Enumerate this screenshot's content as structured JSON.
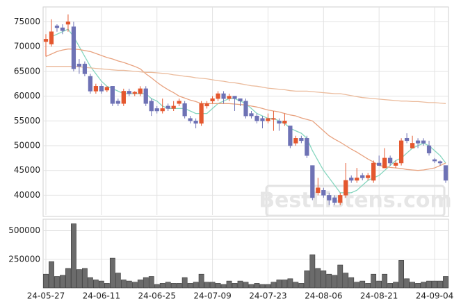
{
  "chart_data": [
    {
      "type": "candlestick",
      "open": [
        71000,
        70500,
        74200,
        73800,
        74500,
        74000,
        66500,
        66500,
        64000,
        61000,
        62000,
        61200,
        62000,
        59000,
        58500,
        61000,
        60500,
        60500,
        61500,
        59000,
        57500,
        57000,
        58000,
        57500,
        58500,
        58500,
        55500,
        55000,
        54500,
        58000,
        59000,
        59500,
        60500,
        59500,
        60000,
        59500,
        59000,
        56500,
        56000,
        55500,
        55000,
        55300,
        55000,
        54500,
        54000,
        50500,
        51500,
        51500,
        46000,
        40500,
        41000,
        40000,
        39500,
        38500,
        40000,
        43500,
        43000,
        44000,
        43500,
        43000,
        46500,
        45500,
        47500,
        46000,
        46500,
        51500,
        49500,
        51000,
        51000,
        50000,
        47200,
        46800,
        46000
      ],
      "high": [
        72500,
        75500,
        74500,
        74500,
        76500,
        75000,
        67500,
        67000,
        64500,
        62500,
        62500,
        62000,
        62000,
        59500,
        61500,
        61500,
        61000,
        62000,
        62000,
        59500,
        58000,
        59500,
        58500,
        59000,
        59500,
        59000,
        56000,
        55500,
        59000,
        59000,
        60000,
        61000,
        61000,
        60500,
        60000,
        59500,
        59500,
        57000,
        56500,
        56000,
        56500,
        57000,
        55500,
        56500,
        54000,
        52000,
        52000,
        52000,
        46000,
        43500,
        41500,
        40500,
        40000,
        40500,
        46500,
        44000,
        45500,
        44500,
        44500,
        47000,
        48000,
        49500,
        48000,
        47000,
        51500,
        52500,
        52000,
        51500,
        51500,
        51000,
        47500,
        47000,
        46000
      ],
      "low": [
        68000,
        70000,
        73000,
        72500,
        73000,
        65000,
        64500,
        64000,
        60500,
        60500,
        60500,
        60800,
        58000,
        58000,
        58000,
        60000,
        60000,
        60000,
        58000,
        56000,
        56500,
        56500,
        57000,
        57000,
        58000,
        55500,
        54500,
        53500,
        54000,
        57500,
        58500,
        59000,
        58500,
        59000,
        57000,
        58000,
        55500,
        55500,
        54500,
        53500,
        54500,
        53000,
        53000,
        54000,
        49500,
        50000,
        50500,
        47500,
        39000,
        40000,
        39500,
        38000,
        38000,
        38000,
        39500,
        42500,
        42500,
        43000,
        43000,
        42500,
        46000,
        45500,
        46000,
        45500,
        46000,
        50500,
        49500,
        49500,
        50000,
        48000,
        46500,
        46000,
        42500
      ],
      "close": [
        71500,
        73000,
        73800,
        73200,
        75000,
        65500,
        66000,
        64500,
        61000,
        62000,
        61000,
        61800,
        58500,
        58500,
        61000,
        60500,
        60800,
        61500,
        58500,
        57000,
        57000,
        57500,
        57500,
        58000,
        59000,
        56000,
        55000,
        54500,
        58500,
        58500,
        59500,
        60500,
        59500,
        60000,
        59500,
        59000,
        56000,
        56000,
        55000,
        55000,
        55500,
        55500,
        54500,
        55000,
        50000,
        51500,
        51000,
        48000,
        39500,
        41500,
        40000,
        39000,
        38500,
        40000,
        43000,
        43000,
        43500,
        43500,
        44000,
        46500,
        46000,
        47500,
        46500,
        46500,
        51000,
        51000,
        50500,
        50500,
        50500,
        48500,
        46900,
        46500,
        43000
      ],
      "up_color": "#e4572e",
      "down_color": "#6e72b5",
      "series": [
        {
          "color": "#86d6bf",
          "values": [
            null,
            72000,
            72500,
            73000,
            73500,
            72000,
            70000,
            68000,
            66000,
            64500,
            63000,
            62000,
            61500,
            61000,
            60500,
            60500,
            60500,
            60500,
            60500,
            59500,
            59000,
            58000,
            57500,
            57500,
            57500,
            57500,
            57000,
            56500,
            56500,
            56500,
            57500,
            58500,
            59000,
            59500,
            59500,
            59000,
            58500,
            57500,
            56500,
            56000,
            55500,
            55500,
            55000,
            54500,
            53500,
            53000,
            52500,
            51500,
            49000,
            47000,
            45000,
            43500,
            42000,
            40500,
            40500,
            40500,
            41000,
            42000,
            43000,
            43500,
            44000,
            45000,
            46000,
            47000,
            47500,
            48500,
            49500,
            50000,
            50500,
            50000,
            49000,
            48000,
            46500
          ]
        },
        {
          "color": "#e8a27f",
          "values": [
            68000,
            68500,
            69000,
            69300,
            69500,
            69500,
            69400,
            69200,
            69000,
            68600,
            68200,
            67800,
            67500,
            67100,
            66800,
            66400,
            66000,
            65500,
            64500,
            63700,
            62800,
            62000,
            61300,
            60700,
            60000,
            59600,
            59200,
            58900,
            58500,
            58500,
            58500,
            58500,
            58500,
            58500,
            58400,
            58300,
            58200,
            58000,
            57800,
            57500,
            57200,
            57000,
            56800,
            56500,
            56200,
            56000,
            55600,
            55300,
            55000,
            54000,
            53000,
            52000,
            51300,
            50700,
            50000,
            49300,
            48700,
            48000,
            47300,
            46700,
            46000,
            45800,
            45600,
            45500,
            45400,
            45200,
            45100,
            45000,
            45100,
            45300,
            45500,
            46000,
            46500
          ]
        },
        {
          "color": "#ebbb9c",
          "values": [
            66000,
            66000,
            66000,
            66000,
            66000,
            66000,
            65900,
            65800,
            65700,
            65600,
            65500,
            65400,
            65300,
            65200,
            65200,
            65100,
            65000,
            64900,
            64800,
            64800,
            64700,
            64600,
            64500,
            64300,
            64200,
            64000,
            63900,
            63700,
            63600,
            63500,
            63300,
            63100,
            63000,
            62800,
            62700,
            62500,
            62300,
            62100,
            62000,
            61800,
            61600,
            61500,
            61400,
            61300,
            61100,
            61000,
            61000,
            61000,
            60900,
            60800,
            60700,
            60600,
            60500,
            60500,
            60300,
            60100,
            59900,
            59700,
            59600,
            59500,
            59400,
            59300,
            59200,
            59100,
            59000,
            59000,
            58900,
            58900,
            58800,
            58700,
            58700,
            58600,
            58500
          ]
        }
      ],
      "ylim": [
        36000,
        78000
      ],
      "yticks": [
        40000,
        45000,
        50000,
        55000,
        60000,
        65000,
        70000,
        75000
      ],
      "grid": true,
      "watermark": "BestListens.com"
    },
    {
      "type": "bar",
      "categories": [
        "24-05-27",
        null,
        null,
        null,
        null,
        null,
        null,
        null,
        null,
        null,
        "24-06-11",
        null,
        null,
        null,
        null,
        null,
        null,
        null,
        null,
        null,
        "24-06-25",
        null,
        null,
        null,
        null,
        null,
        null,
        null,
        null,
        null,
        "24-07-09",
        null,
        null,
        null,
        null,
        null,
        null,
        null,
        null,
        null,
        "24-07-23",
        null,
        null,
        null,
        null,
        null,
        null,
        null,
        null,
        null,
        "24-08-06",
        null,
        null,
        null,
        null,
        null,
        null,
        null,
        null,
        null,
        "24-08-21",
        null,
        null,
        null,
        null,
        null,
        null,
        null,
        null,
        null,
        "24-09-04",
        null,
        null
      ],
      "values": [
        120000,
        230000,
        100000,
        110000,
        170000,
        560000,
        160000,
        170000,
        90000,
        70000,
        60000,
        40000,
        260000,
        130000,
        70000,
        60000,
        50000,
        70000,
        90000,
        100000,
        30000,
        40000,
        50000,
        40000,
        40000,
        90000,
        40000,
        50000,
        120000,
        50000,
        50000,
        40000,
        30000,
        60000,
        40000,
        60000,
        50000,
        30000,
        40000,
        30000,
        30000,
        50000,
        70000,
        70000,
        80000,
        50000,
        40000,
        150000,
        290000,
        170000,
        150000,
        120000,
        110000,
        200000,
        130000,
        90000,
        50000,
        60000,
        40000,
        120000,
        60000,
        120000,
        40000,
        50000,
        240000,
        80000,
        50000,
        40000,
        50000,
        60000,
        60000,
        60000,
        100000
      ],
      "color": "#6b6b6b",
      "ylim": [
        0,
        600000
      ],
      "yticks": [
        250000,
        500000
      ],
      "grid": true
    }
  ]
}
